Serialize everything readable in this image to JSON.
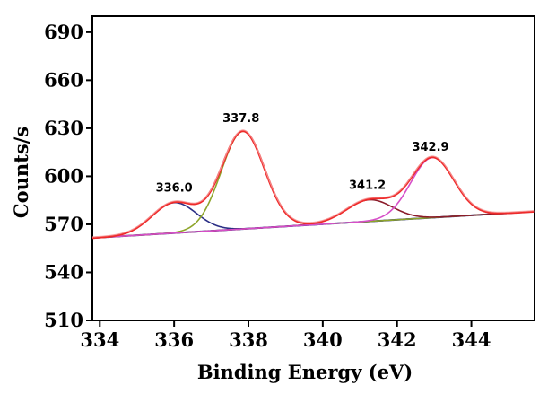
{
  "chart_data": {
    "type": "line",
    "title": "",
    "xlabel": "Binding Energy (eV)",
    "ylabel": "Counts/s",
    "xlim": [
      333.8,
      345.7
    ],
    "ylim": [
      510,
      700
    ],
    "x_ticks": [
      334,
      336,
      338,
      340,
      342,
      344
    ],
    "y_ticks": [
      510,
      540,
      570,
      600,
      630,
      660,
      690
    ],
    "grid": false,
    "background": {
      "start": [
        333.8,
        561.5
      ],
      "end": [
        345.7,
        578.0
      ]
    },
    "peaks": [
      {
        "center": 336.0,
        "amplitude": 19.0,
        "sigma": 0.6,
        "color": "#2b2f86"
      },
      {
        "center": 337.85,
        "amplitude": 61.0,
        "sigma": 0.58,
        "color": "#8ea52a"
      },
      {
        "center": 341.25,
        "amplitude": 13.5,
        "sigma": 0.62,
        "color": "#8b1c2a"
      },
      {
        "center": 342.95,
        "amplitude": 37.5,
        "sigma": 0.58,
        "color": "#d64fc8"
      }
    ],
    "series": [
      {
        "name": "Background",
        "color": "#2b2f86"
      },
      {
        "name": "Peak 336.0",
        "color": "#2b2f86"
      },
      {
        "name": "Peak 337.8",
        "color": "#8ea52a"
      },
      {
        "name": "Peak 341.2",
        "color": "#8b1c2a"
      },
      {
        "name": "Peak 342.9",
        "color": "#d64fc8"
      },
      {
        "name": "Envelope",
        "color": "#ee2a2a"
      }
    ],
    "annotations": [
      {
        "text": "336.0",
        "x": 336.0,
        "y": 590.5
      },
      {
        "text": "337.8",
        "x": 337.8,
        "y": 634.0
      },
      {
        "text": "341.2",
        "x": 341.2,
        "y": 592.0
      },
      {
        "text": "342.9",
        "x": 342.9,
        "y": 616.0
      }
    ]
  }
}
